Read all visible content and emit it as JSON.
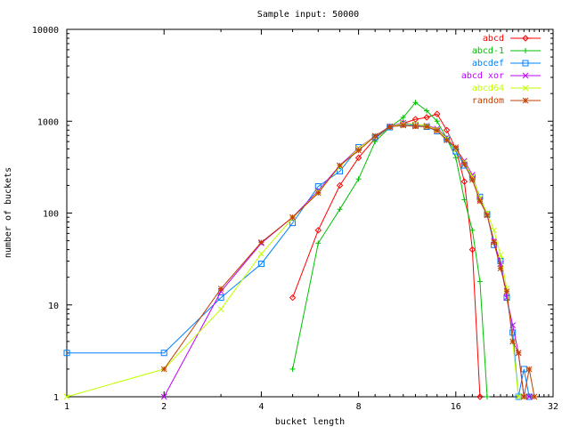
{
  "chart_data": {
    "type": "line",
    "title": "Sample input: 50000",
    "xlabel": "bucket length",
    "ylabel": "number of buckets",
    "x_scale": "log2",
    "y_scale": "log10",
    "xlim": [
      1,
      32
    ],
    "ylim": [
      1,
      10000
    ],
    "x_ticks": [
      1,
      2,
      4,
      8,
      16,
      32
    ],
    "x_tick_labels": [
      "1",
      "2",
      "4",
      "8",
      "16",
      "32"
    ],
    "y_ticks": [
      1,
      10,
      100,
      1000,
      10000
    ],
    "y_tick_labels": [
      "1",
      "10",
      "100",
      "1000",
      "10000"
    ],
    "grid": false,
    "legend": "top-right",
    "series": [
      {
        "name": "abcd",
        "color": "#ff0000",
        "marker": "diamond",
        "points": [
          [
            5,
            12
          ],
          [
            6,
            65
          ],
          [
            7,
            200
          ],
          [
            8,
            400
          ],
          [
            9,
            650
          ],
          [
            10,
            870
          ],
          [
            11,
            950
          ],
          [
            12,
            1050
          ],
          [
            13,
            1100
          ],
          [
            14,
            1200
          ],
          [
            15,
            800
          ],
          [
            16,
            500
          ],
          [
            17,
            220
          ],
          [
            18,
            40
          ],
          [
            19,
            1
          ]
        ]
      },
      {
        "name": "abcd-1",
        "color": "#00c000",
        "marker": "plus",
        "points": [
          [
            5,
            2
          ],
          [
            6,
            47
          ],
          [
            7,
            110
          ],
          [
            8,
            235
          ],
          [
            9,
            600
          ],
          [
            10,
            860
          ],
          [
            11,
            1100
          ],
          [
            12,
            1600
          ],
          [
            13,
            1300
          ],
          [
            14,
            1000
          ],
          [
            15,
            650
          ],
          [
            16,
            400
          ],
          [
            17,
            140
          ],
          [
            18,
            65
          ],
          [
            19,
            18
          ],
          [
            20,
            1
          ]
        ]
      },
      {
        "name": "abcdef",
        "color": "#0080ff",
        "marker": "square",
        "points": [
          [
            1,
            3
          ],
          [
            2,
            3
          ],
          [
            3,
            12
          ],
          [
            4,
            28
          ],
          [
            5,
            78
          ],
          [
            6,
            195
          ],
          [
            7,
            285
          ],
          [
            8,
            520
          ],
          [
            9,
            670
          ],
          [
            10,
            860
          ],
          [
            11,
            930
          ],
          [
            12,
            900
          ],
          [
            13,
            870
          ],
          [
            14,
            780
          ],
          [
            15,
            640
          ],
          [
            16,
            470
          ],
          [
            17,
            330
          ],
          [
            18,
            245
          ],
          [
            19,
            150
          ],
          [
            20,
            97
          ],
          [
            21,
            45
          ],
          [
            22,
            30
          ],
          [
            23,
            12
          ],
          [
            24,
            5
          ],
          [
            25,
            1
          ],
          [
            26,
            2
          ],
          [
            27,
            1
          ]
        ]
      },
      {
        "name": "abcd xor",
        "color": "#c000ff",
        "marker": "cross",
        "points": [
          [
            2,
            1
          ],
          [
            3,
            14
          ],
          [
            4,
            47
          ],
          [
            5,
            90
          ],
          [
            6,
            175
          ],
          [
            7,
            330
          ],
          [
            8,
            510
          ],
          [
            9,
            690
          ],
          [
            10,
            880
          ],
          [
            11,
            960
          ],
          [
            12,
            920
          ],
          [
            13,
            900
          ],
          [
            14,
            830
          ],
          [
            15,
            660
          ],
          [
            16,
            500
          ],
          [
            17,
            370
          ],
          [
            18,
            260
          ],
          [
            19,
            140
          ],
          [
            20,
            95
          ],
          [
            21,
            50
          ],
          [
            22,
            28
          ],
          [
            23,
            12
          ],
          [
            24,
            6
          ],
          [
            25,
            3
          ],
          [
            26,
            1
          ],
          [
            27,
            1
          ]
        ]
      },
      {
        "name": "abcd64",
        "color": "#c0ff00",
        "marker": "cross",
        "points": [
          [
            1,
            1
          ],
          [
            2,
            2
          ],
          [
            3,
            9
          ],
          [
            4,
            36
          ],
          [
            5,
            88
          ],
          [
            6,
            170
          ],
          [
            7,
            320
          ],
          [
            8,
            505
          ],
          [
            9,
            685
          ],
          [
            10,
            870
          ],
          [
            11,
            940
          ],
          [
            12,
            930
          ],
          [
            13,
            890
          ],
          [
            14,
            810
          ],
          [
            15,
            650
          ],
          [
            16,
            490
          ],
          [
            17,
            360
          ],
          [
            18,
            250
          ],
          [
            19,
            145
          ],
          [
            20,
            100
          ],
          [
            21,
            65
          ],
          [
            22,
            35
          ],
          [
            23,
            15
          ],
          [
            24,
            4
          ],
          [
            25,
            1
          ],
          [
            26,
            1
          ]
        ]
      },
      {
        "name": "random",
        "color": "#c04000",
        "marker": "star",
        "points": [
          [
            2,
            2
          ],
          [
            3,
            15
          ],
          [
            4,
            48
          ],
          [
            5,
            90
          ],
          [
            6,
            165
          ],
          [
            7,
            330
          ],
          [
            8,
            480
          ],
          [
            9,
            690
          ],
          [
            10,
            870
          ],
          [
            11,
            900
          ],
          [
            12,
            880
          ],
          [
            13,
            870
          ],
          [
            14,
            790
          ],
          [
            15,
            620
          ],
          [
            16,
            520
          ],
          [
            17,
            340
          ],
          [
            18,
            230
          ],
          [
            19,
            135
          ],
          [
            20,
            95
          ],
          [
            21,
            48
          ],
          [
            22,
            25
          ],
          [
            23,
            14
          ],
          [
            24,
            4
          ],
          [
            25,
            3
          ],
          [
            26,
            1
          ],
          [
            27,
            2
          ],
          [
            28,
            1
          ]
        ]
      }
    ]
  }
}
